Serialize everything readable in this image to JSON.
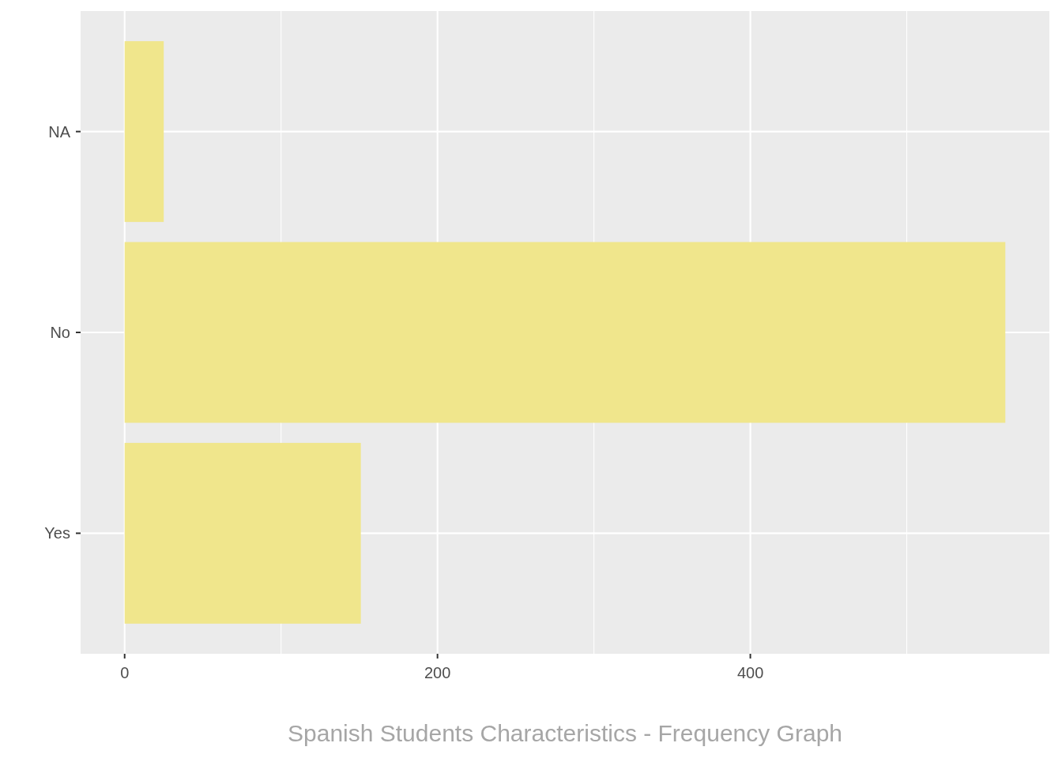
{
  "chart_data": {
    "type": "bar",
    "orientation": "horizontal",
    "xlabel": "Spanish Students Characteristics - Frequency Graph",
    "categories": [
      "NA",
      "No",
      "Yes"
    ],
    "values": [
      25,
      563,
      151
    ],
    "color": "#f0e68c",
    "xlim": [
      -28.15,
      591.15
    ],
    "xticks": [
      0,
      {
        "value": 100,
        "label": null
      },
      200,
      {
        "value": 300,
        "label": null
      },
      400,
      {
        "value": 500,
        "label": null
      }
    ],
    "grid": true
  }
}
